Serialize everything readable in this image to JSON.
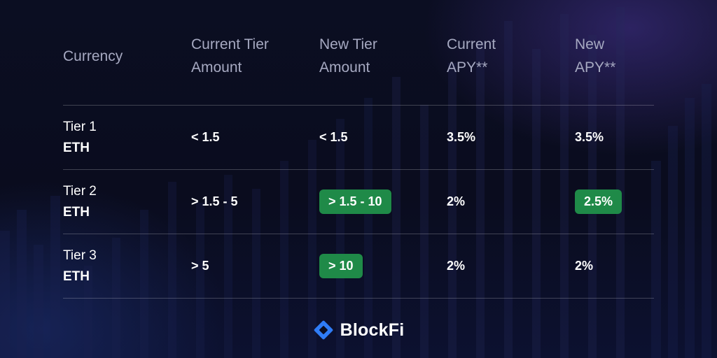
{
  "table": {
    "headers": [
      [
        "Currency"
      ],
      [
        "Current Tier",
        "Amount"
      ],
      [
        "New Tier",
        "Amount"
      ],
      [
        "Current",
        "APY**"
      ],
      [
        "New",
        "APY**"
      ]
    ],
    "rows": [
      {
        "tier": "Tier 1",
        "unit": "ETH",
        "current_amount": "< 1.5",
        "new_amount": "< 1.5",
        "current_apy": "3.5%",
        "new_apy": "3.5%"
      },
      {
        "tier": "Tier 2",
        "unit": "ETH",
        "current_amount": "> 1.5 - 5",
        "new_amount": "> 1.5 - 10",
        "current_apy": "2%",
        "new_apy": "2.5%"
      },
      {
        "tier": "Tier 3",
        "unit": "ETH",
        "current_amount": "> 5",
        "new_amount": "> 10",
        "current_apy": "2%",
        "new_apy": "2%"
      }
    ]
  },
  "brand": {
    "name": "BlockFi",
    "icon": "blockfi-diamond-icon"
  },
  "colors": {
    "highlight": "#1f8a48",
    "brand_blue": "#2f7cf6",
    "header_text": "#a6a9c1",
    "background": "#0b0e22"
  }
}
